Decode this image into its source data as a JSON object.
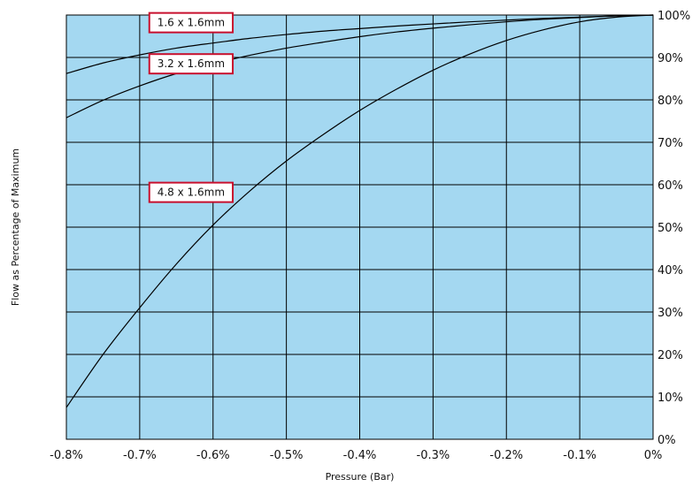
{
  "chart_data": {
    "type": "line",
    "title": "",
    "xlabel": "Pressure (Bar)",
    "ylabel": "Flow as Percentage of Maximum",
    "x_ticks": [
      "-0.8%",
      "-0.7%",
      "-0.6%",
      "-0.5%",
      "-0.4%",
      "-0.3%",
      "-0.2%",
      "-0.1%",
      "0%"
    ],
    "y_ticks": [
      "0%",
      "10%",
      "20%",
      "30%",
      "40%",
      "50%",
      "60%",
      "70%",
      "80%",
      "90%",
      "100%"
    ],
    "xlim": [
      -0.8,
      0
    ],
    "ylim": [
      0,
      100
    ],
    "grid": true,
    "colors": {
      "plot_background": "#a4d8f1",
      "grid": "#000000",
      "curve": "#000000",
      "label_border": "#c8102e",
      "label_fill": "#ffffff"
    },
    "series": [
      {
        "name": "1.6 x 1.6mm",
        "x": [
          -0.8,
          -0.75,
          -0.7,
          -0.65,
          -0.6,
          -0.55,
          -0.5,
          -0.45,
          -0.4,
          -0.35,
          -0.3,
          -0.25,
          -0.2,
          -0.15,
          -0.1,
          -0.05,
          0
        ],
        "y": [
          86.2,
          88.7,
          90.6,
          92.2,
          93.4,
          94.5,
          95.4,
          96.2,
          96.8,
          97.4,
          97.9,
          98.4,
          98.8,
          99.2,
          99.5,
          99.8,
          100
        ]
      },
      {
        "name": "3.2 x 1.6mm",
        "x": [
          -0.8,
          -0.75,
          -0.7,
          -0.65,
          -0.6,
          -0.55,
          -0.5,
          -0.45,
          -0.4,
          -0.35,
          -0.3,
          -0.25,
          -0.2,
          -0.15,
          -0.1,
          -0.05,
          0
        ],
        "y": [
          75.8,
          79.9,
          83.3,
          86.2,
          88.5,
          90.5,
          92.2,
          93.6,
          94.9,
          96.0,
          96.9,
          97.7,
          98.4,
          99.0,
          99.4,
          99.8,
          100
        ]
      },
      {
        "name": "4.8 x 1.6mm",
        "x": [
          -0.8,
          -0.75,
          -0.7,
          -0.65,
          -0.6,
          -0.55,
          -0.5,
          -0.45,
          -0.4,
          -0.35,
          -0.3,
          -0.25,
          -0.2,
          -0.15,
          -0.1,
          -0.05,
          0
        ],
        "y": [
          7.5,
          20.0,
          31.0,
          41.3,
          50.5,
          58.5,
          65.6,
          71.8,
          77.5,
          82.5,
          87.0,
          90.8,
          94.0,
          96.5,
          98.4,
          99.5,
          100
        ]
      }
    ],
    "annotations": [
      {
        "text": "1.6 x 1.6mm",
        "x": -0.63,
        "y": 98.2
      },
      {
        "text": "3.2 x 1.6mm",
        "x": -0.63,
        "y": 88.5
      },
      {
        "text": "4.8 x 1.6mm",
        "x": -0.63,
        "y": 58.2
      }
    ]
  }
}
